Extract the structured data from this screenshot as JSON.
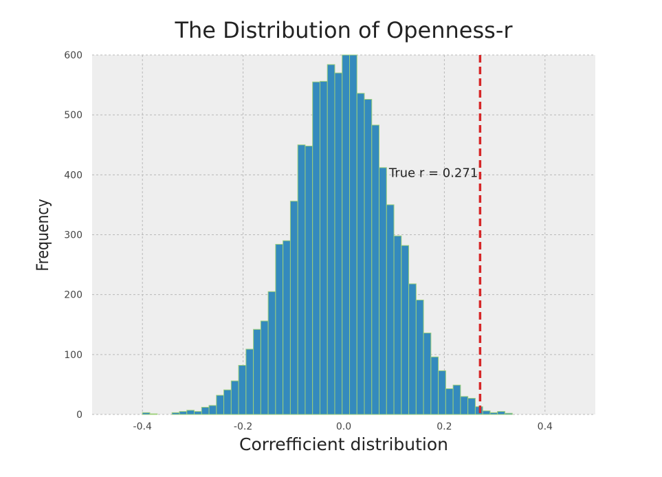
{
  "chart_data": {
    "type": "bar",
    "title": "The Distribution of Openness-r",
    "xlabel": "Correfficient distribution",
    "ylabel": "Frequency",
    "xlim": [
      -0.5,
      0.5
    ],
    "ylim": [
      0,
      600
    ],
    "xticks": [
      -0.4,
      -0.2,
      0.0,
      0.2,
      0.4
    ],
    "xtick_labels": [
      "-0.4",
      "-0.2",
      "0.0",
      "0.2",
      "0.4"
    ],
    "yticks": [
      0,
      100,
      200,
      300,
      400,
      500,
      600
    ],
    "ytick_labels": [
      "0",
      "100",
      "200",
      "300",
      "400",
      "500",
      "600"
    ],
    "grid": true,
    "bin_start": -0.4,
    "bin_width": 0.0147,
    "values": [
      3,
      1,
      0,
      0,
      3,
      5,
      7,
      5,
      12,
      15,
      32,
      41,
      56,
      82,
      109,
      142,
      156,
      205,
      284,
      290,
      356,
      450,
      448,
      555,
      556,
      584,
      570,
      600,
      600,
      536,
      526,
      483,
      412,
      350,
      298,
      282,
      218,
      191,
      136,
      96,
      73,
      43,
      49,
      30,
      27,
      13,
      6,
      3,
      5,
      2
    ],
    "bar_color": "#348abd",
    "bar_edge_color": "#9ccf7a",
    "true_r": 0.271,
    "true_r_line_color": "#d62728",
    "annotation": {
      "text": "True r = 0.271",
      "x": 0.09,
      "y": 400
    }
  }
}
